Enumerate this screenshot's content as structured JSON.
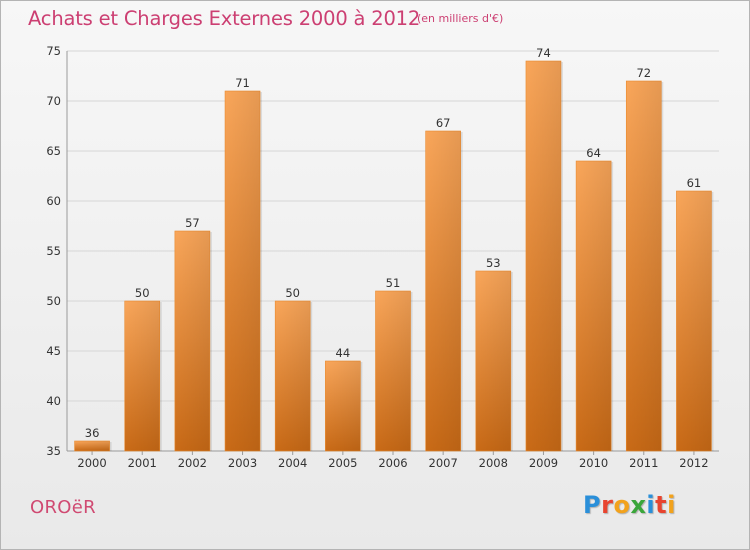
{
  "header": {
    "title": "Achats et Charges Externes 2000 à 2012",
    "unit": "(en milliers d'€)"
  },
  "footer": {
    "commune": "OROëR",
    "brand": "Proxiti",
    "brand_colors": [
      "#2a8fd9",
      "#e8442f",
      "#f2a21c",
      "#3aa63a",
      "#2a8fd9",
      "#e8442f",
      "#f2a21c"
    ]
  },
  "colors": {
    "title": "#cc3f72",
    "bar_top": "#f9a65a",
    "bar_bottom": "#c96a16",
    "grid": "#d6d6d6"
  },
  "chart_data": {
    "type": "bar",
    "title": "Achats et Charges Externes 2000 à 2012",
    "subtitle": "(en milliers d'€)",
    "xlabel": "",
    "ylabel": "",
    "categories": [
      "2000",
      "2001",
      "2002",
      "2003",
      "2004",
      "2005",
      "2006",
      "2007",
      "2008",
      "2009",
      "2010",
      "2011",
      "2012"
    ],
    "values": [
      36,
      50,
      57,
      71,
      50,
      44,
      51,
      67,
      53,
      74,
      64,
      72,
      61
    ],
    "ylim": [
      35,
      75
    ],
    "yticks": [
      35,
      40,
      45,
      50,
      55,
      60,
      65,
      70,
      75
    ],
    "grid": true,
    "data_labels": true
  }
}
